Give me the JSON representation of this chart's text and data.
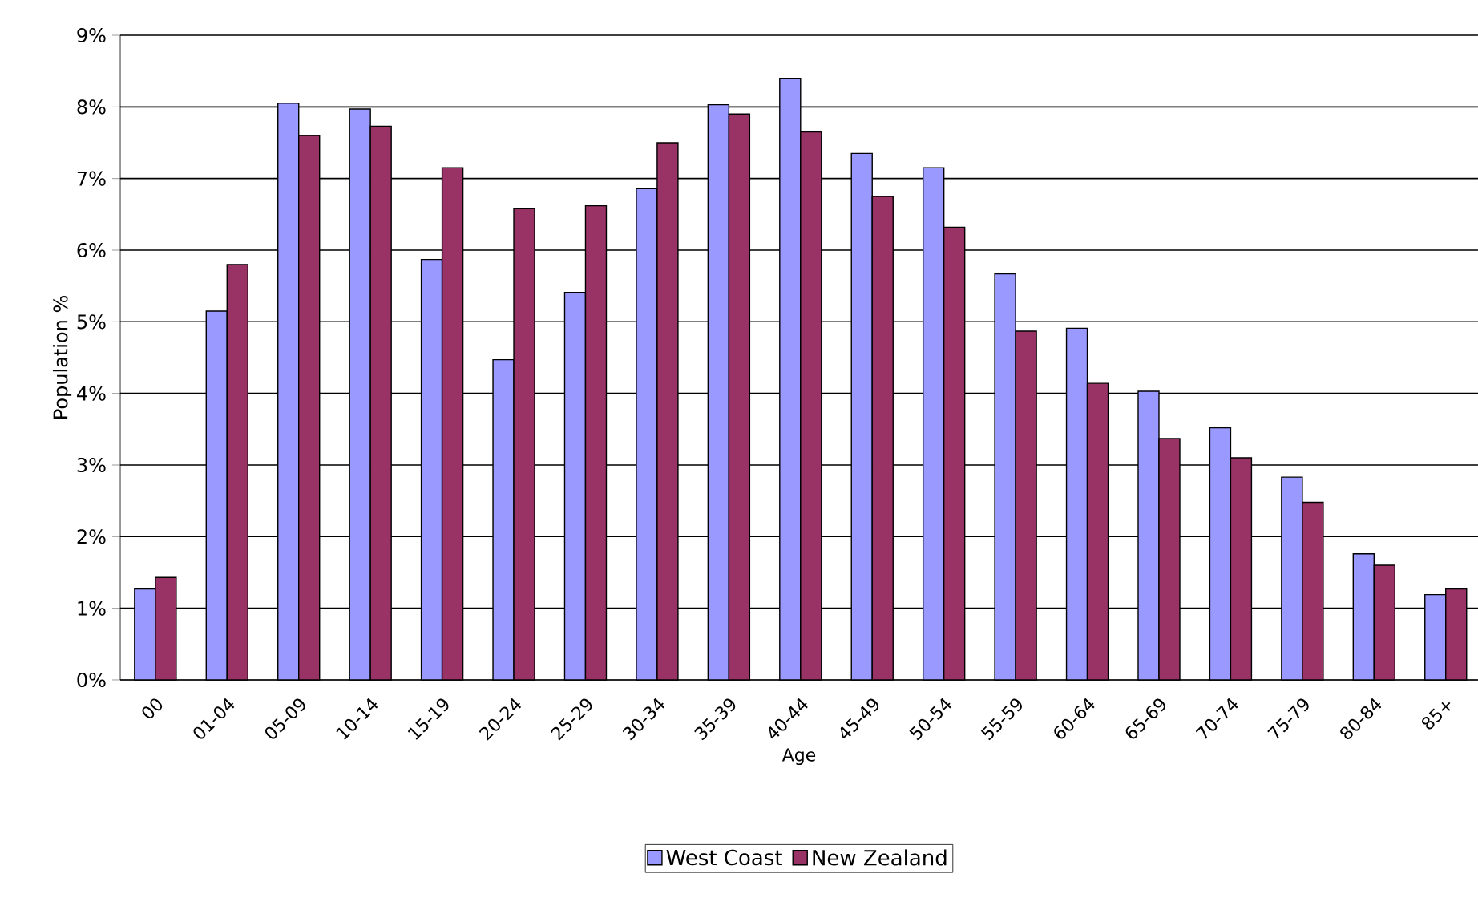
{
  "chart_data": {
    "type": "bar",
    "xlabel": "Age",
    "ylabel": "Population %",
    "categories": [
      "00",
      "01-04",
      "05-09",
      "10-14",
      "15-19",
      "20-24",
      "25-29",
      "30-34",
      "35-39",
      "40-44",
      "45-49",
      "50-54",
      "55-59",
      "60-64",
      "65-69",
      "70-74",
      "75-79",
      "80-84",
      "85+"
    ],
    "series": [
      {
        "name": "West Coast",
        "color": "#9999ff",
        "values": [
          1.27,
          5.15,
          8.05,
          7.97,
          5.87,
          4.47,
          5.41,
          6.86,
          8.03,
          8.4,
          7.35,
          7.15,
          5.67,
          4.91,
          4.03,
          3.52,
          2.83,
          1.76,
          1.19
        ]
      },
      {
        "name": "New Zealand",
        "color": "#993366",
        "values": [
          1.43,
          5.8,
          7.6,
          7.73,
          7.15,
          6.58,
          6.62,
          7.5,
          7.9,
          7.65,
          6.75,
          6.32,
          4.87,
          4.14,
          3.37,
          3.1,
          2.48,
          1.6,
          1.27
        ]
      }
    ],
    "ylim": [
      0,
      9
    ],
    "yticks": [
      {
        "value": 0,
        "label": "0%"
      },
      {
        "value": 1,
        "label": "1%"
      },
      {
        "value": 2,
        "label": "2%"
      },
      {
        "value": 3,
        "label": "3%"
      },
      {
        "value": 4,
        "label": "4%"
      },
      {
        "value": 5,
        "label": "5%"
      },
      {
        "value": 6,
        "label": "6%"
      },
      {
        "value": 7,
        "label": "7%"
      },
      {
        "value": 8,
        "label": "8%"
      },
      {
        "value": 9,
        "label": "9%"
      }
    ],
    "grid": "y",
    "legend": "bottom"
  }
}
